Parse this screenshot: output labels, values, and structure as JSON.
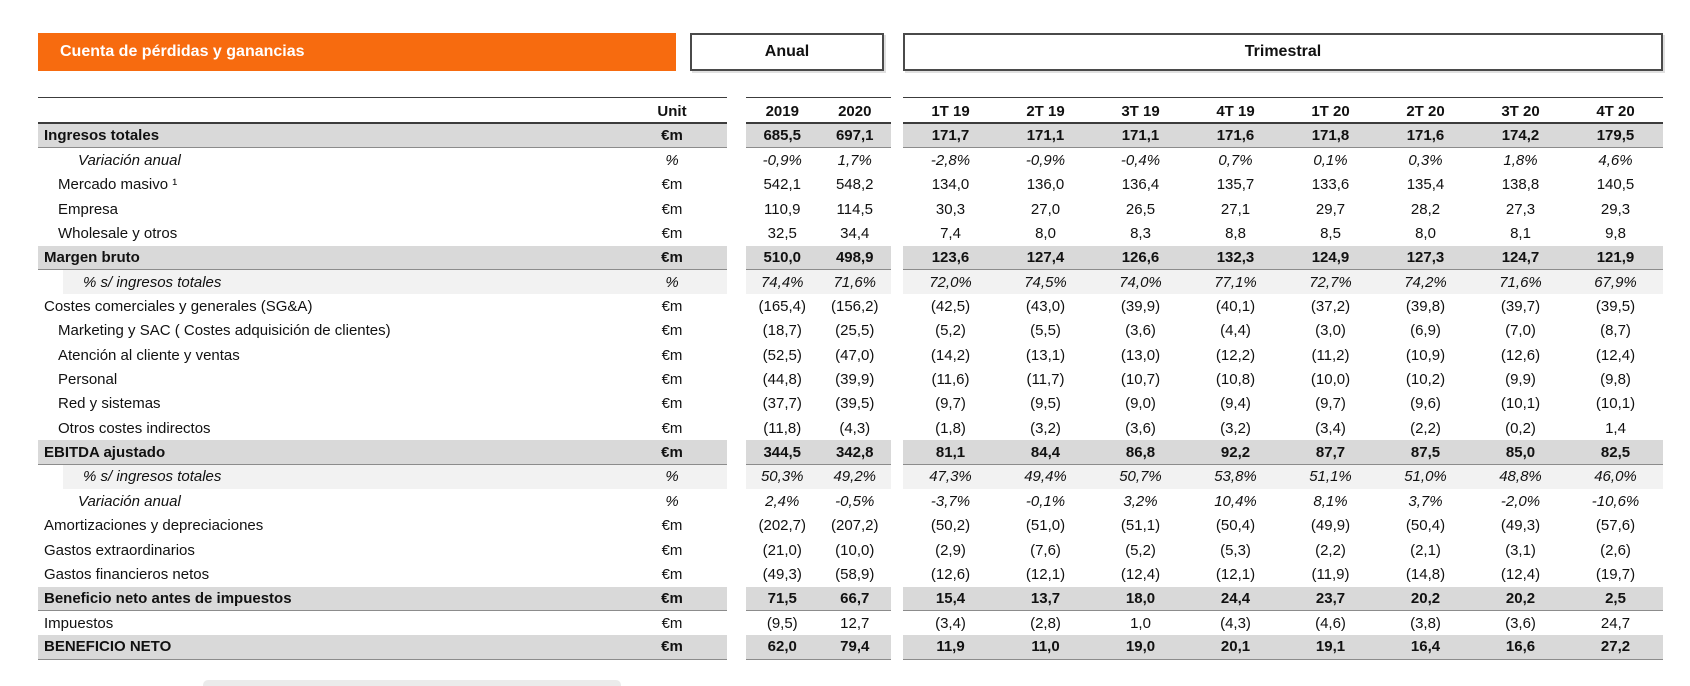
{
  "header": {
    "title": "Cuenta de pérdidas y ganancias",
    "annual_label": "Anual",
    "quarterly_label": "Trimestral",
    "unit_label": "Unit",
    "annual_columns": [
      "2019",
      "2020"
    ],
    "quarter_columns": [
      "1T 19",
      "2T 19",
      "3T 19",
      "4T 19",
      "1T 20",
      "2T 20",
      "3T 20",
      "4T 20"
    ]
  },
  "colors": {
    "accent_orange": "#f76b0f",
    "row_highlight_gray": "#d9d9d9",
    "row_subtle_gray": "#f2f2f2"
  },
  "rows": [
    {
      "label": "Ingresos totales",
      "unit": "€m",
      "style": "highlight",
      "indent": 0,
      "annual": [
        "685,5",
        "697,1"
      ],
      "quarters": [
        "171,7",
        "171,1",
        "171,1",
        "171,6",
        "171,8",
        "171,6",
        "174,2",
        "179,5"
      ]
    },
    {
      "label": "Variación anual",
      "unit": "%",
      "style": "italic",
      "indent": 2,
      "annual": [
        "-0,9%",
        "1,7%"
      ],
      "quarters": [
        "-2,8%",
        "-0,9%",
        "-0,4%",
        "0,7%",
        "0,1%",
        "0,3%",
        "1,8%",
        "4,6%"
      ]
    },
    {
      "label": "Mercado masivo ¹",
      "unit": "€m",
      "style": "plain",
      "indent": 1,
      "annual": [
        "542,1",
        "548,2"
      ],
      "quarters": [
        "134,0",
        "136,0",
        "136,4",
        "135,7",
        "133,6",
        "135,4",
        "138,8",
        "140,5"
      ]
    },
    {
      "label": "Empresa",
      "unit": "€m",
      "style": "plain",
      "indent": 1,
      "annual": [
        "110,9",
        "114,5"
      ],
      "quarters": [
        "30,3",
        "27,0",
        "26,5",
        "27,1",
        "29,7",
        "28,2",
        "27,3",
        "29,3"
      ]
    },
    {
      "label": "Wholesale y otros",
      "unit": "€m",
      "style": "plain",
      "indent": 1,
      "annual": [
        "32,5",
        "34,4"
      ],
      "quarters": [
        "7,4",
        "8,0",
        "8,3",
        "8,8",
        "8,5",
        "8,0",
        "8,1",
        "9,8"
      ]
    },
    {
      "label": "Margen bruto",
      "unit": "€m",
      "style": "highlight",
      "indent": 0,
      "annual": [
        "510,0",
        "498,9"
      ],
      "quarters": [
        "123,6",
        "127,4",
        "126,6",
        "132,3",
        "124,9",
        "127,3",
        "124,7",
        "121,9"
      ]
    },
    {
      "label": "% s/ ingresos totales",
      "unit": "%",
      "style": "subtle",
      "indent": 1,
      "annual": [
        "74,4%",
        "71,6%"
      ],
      "quarters": [
        "72,0%",
        "74,5%",
        "74,0%",
        "77,1%",
        "72,7%",
        "74,2%",
        "71,6%",
        "67,9%"
      ]
    },
    {
      "label": "Costes comerciales y generales (SG&A)",
      "unit": "€m",
      "style": "plain",
      "indent": 0,
      "annual": [
        "(165,4)",
        "(156,2)"
      ],
      "quarters": [
        "(42,5)",
        "(43,0)",
        "(39,9)",
        "(40,1)",
        "(37,2)",
        "(39,8)",
        "(39,7)",
        "(39,5)"
      ]
    },
    {
      "label": "Marketing y SAC ( Costes adquisición de clientes)",
      "unit": "€m",
      "style": "plain",
      "indent": 1,
      "annual": [
        "(18,7)",
        "(25,5)"
      ],
      "quarters": [
        "(5,2)",
        "(5,5)",
        "(3,6)",
        "(4,4)",
        "(3,0)",
        "(6,9)",
        "(7,0)",
        "(8,7)"
      ]
    },
    {
      "label": "Atención al cliente y ventas",
      "unit": "€m",
      "style": "plain",
      "indent": 1,
      "annual": [
        "(52,5)",
        "(47,0)"
      ],
      "quarters": [
        "(14,2)",
        "(13,1)",
        "(13,0)",
        "(12,2)",
        "(11,2)",
        "(10,9)",
        "(12,6)",
        "(12,4)"
      ]
    },
    {
      "label": "Personal",
      "unit": "€m",
      "style": "plain",
      "indent": 1,
      "annual": [
        "(44,8)",
        "(39,9)"
      ],
      "quarters": [
        "(11,6)",
        "(11,7)",
        "(10,7)",
        "(10,8)",
        "(10,0)",
        "(10,2)",
        "(9,9)",
        "(9,8)"
      ]
    },
    {
      "label": "Red y sistemas",
      "unit": "€m",
      "style": "plain",
      "indent": 1,
      "annual": [
        "(37,7)",
        "(39,5)"
      ],
      "quarters": [
        "(9,7)",
        "(9,5)",
        "(9,0)",
        "(9,4)",
        "(9,7)",
        "(9,6)",
        "(10,1)",
        "(10,1)"
      ]
    },
    {
      "label": "Otros costes indirectos",
      "unit": "€m",
      "style": "plain",
      "indent": 1,
      "annual": [
        "(11,8)",
        "(4,3)"
      ],
      "quarters": [
        "(1,8)",
        "(3,2)",
        "(3,6)",
        "(3,2)",
        "(3,4)",
        "(2,2)",
        "(0,2)",
        "1,4"
      ]
    },
    {
      "label": "EBITDA ajustado",
      "unit": "€m",
      "style": "highlight",
      "indent": 0,
      "annual": [
        "344,5",
        "342,8"
      ],
      "quarters": [
        "81,1",
        "84,4",
        "86,8",
        "92,2",
        "87,7",
        "87,5",
        "85,0",
        "82,5"
      ]
    },
    {
      "label": "% s/ ingresos totales",
      "unit": "%",
      "style": "subtle",
      "indent": 1,
      "annual": [
        "50,3%",
        "49,2%"
      ],
      "quarters": [
        "47,3%",
        "49,4%",
        "50,7%",
        "53,8%",
        "51,1%",
        "51,0%",
        "48,8%",
        "46,0%"
      ]
    },
    {
      "label": "Variación anual",
      "unit": "%",
      "style": "italic",
      "indent": 2,
      "annual": [
        "2,4%",
        "-0,5%"
      ],
      "quarters": [
        "-3,7%",
        "-0,1%",
        "3,2%",
        "10,4%",
        "8,1%",
        "3,7%",
        "-2,0%",
        "-10,6%"
      ]
    },
    {
      "label": "Amortizaciones y depreciaciones",
      "unit": "€m",
      "style": "plain",
      "indent": 0,
      "annual": [
        "(202,7)",
        "(207,2)"
      ],
      "quarters": [
        "(50,2)",
        "(51,0)",
        "(51,1)",
        "(50,4)",
        "(49,9)",
        "(50,4)",
        "(49,3)",
        "(57,6)"
      ]
    },
    {
      "label": "Gastos extraordinarios",
      "unit": "€m",
      "style": "plain",
      "indent": 0,
      "annual": [
        "(21,0)",
        "(10,0)"
      ],
      "quarters": [
        "(2,9)",
        "(7,6)",
        "(5,2)",
        "(5,3)",
        "(2,2)",
        "(2,1)",
        "(3,1)",
        "(2,6)"
      ]
    },
    {
      "label": "Gastos financieros netos",
      "unit": "€m",
      "style": "plain",
      "indent": 0,
      "annual": [
        "(49,3)",
        "(58,9)"
      ],
      "quarters": [
        "(12,6)",
        "(12,1)",
        "(12,4)",
        "(12,1)",
        "(11,9)",
        "(14,8)",
        "(12,4)",
        "(19,7)"
      ]
    },
    {
      "label": "Beneficio neto antes de impuestos",
      "unit": "€m",
      "style": "highlight",
      "indent": 0,
      "annual": [
        "71,5",
        "66,7"
      ],
      "quarters": [
        "15,4",
        "13,7",
        "18,0",
        "24,4",
        "23,7",
        "20,2",
        "20,2",
        "2,5"
      ]
    },
    {
      "label": "Impuestos",
      "unit": "€m",
      "style": "plain",
      "indent": 0,
      "annual": [
        "(9,5)",
        "12,7"
      ],
      "quarters": [
        "(3,4)",
        "(2,8)",
        "1,0",
        "(4,3)",
        "(4,6)",
        "(3,8)",
        "(3,6)",
        "24,7"
      ]
    },
    {
      "label": "BENEFICIO NETO",
      "unit": "€m",
      "style": "highlight",
      "indent": 0,
      "annual": [
        "62,0",
        "79,4"
      ],
      "quarters": [
        "11,9",
        "11,0",
        "19,0",
        "20,1",
        "19,1",
        "16,4",
        "16,6",
        "27,2"
      ]
    }
  ]
}
